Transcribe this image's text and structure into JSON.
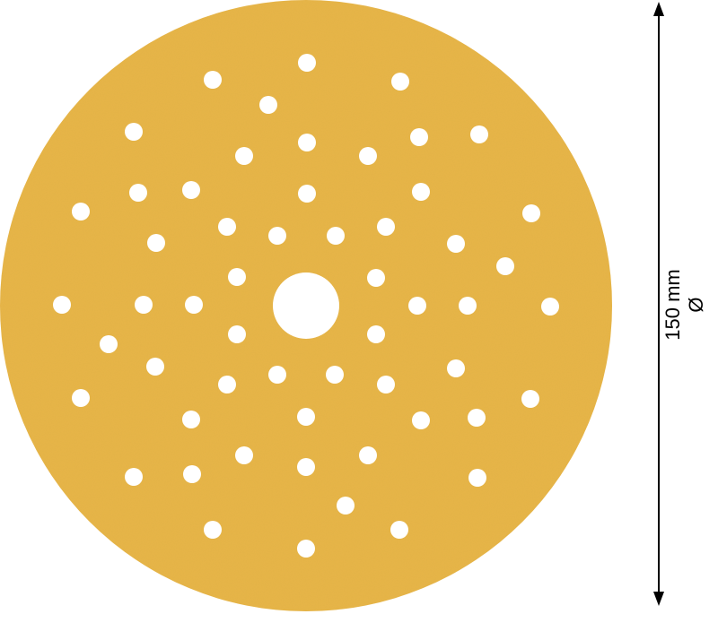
{
  "product": {
    "type": "sanding-disc",
    "disc_color": "#e8b54a",
    "hole_color": "#ffffff"
  },
  "dimension": {
    "value": "150 mm",
    "symbol": "Ø"
  }
}
